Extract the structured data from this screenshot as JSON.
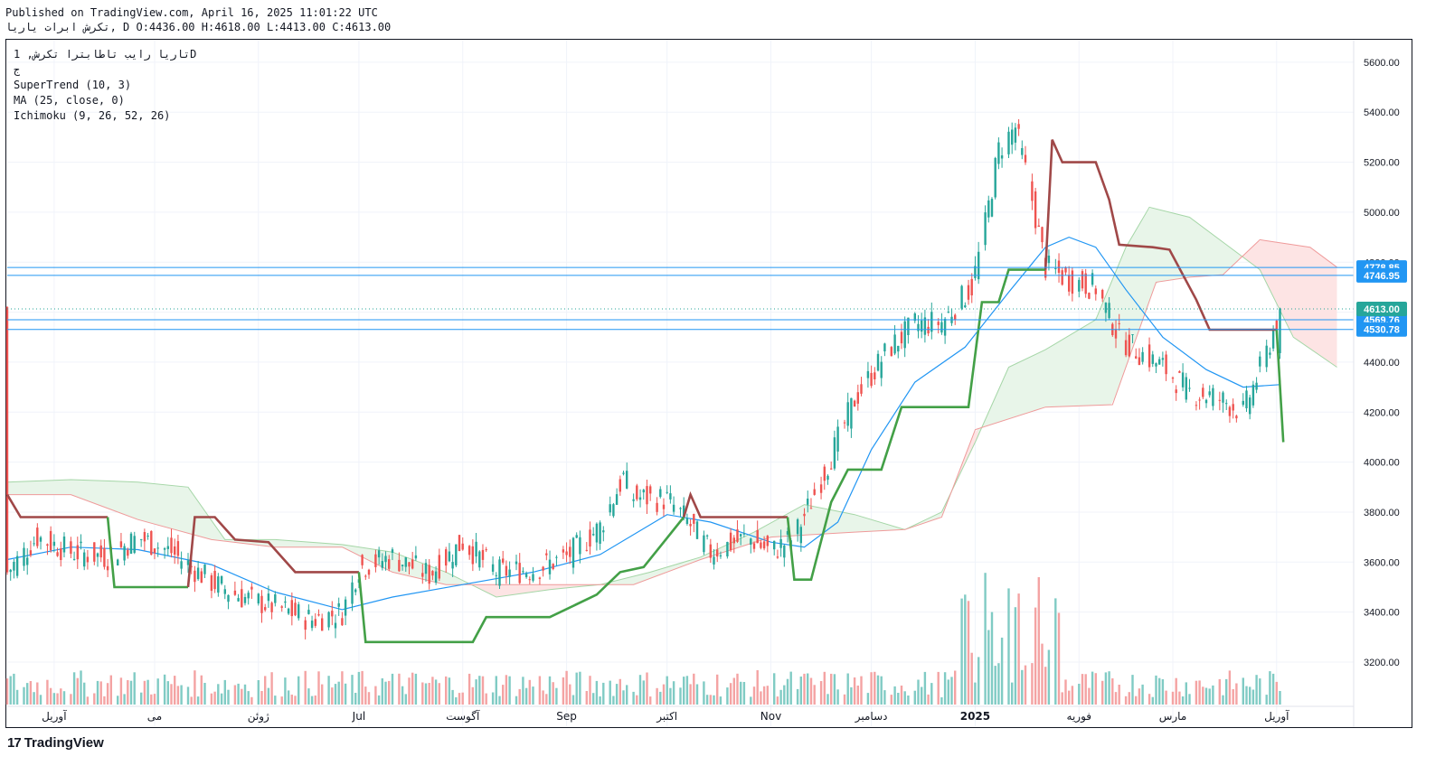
{
  "header": {
    "published": "Published on TradingView.com, April 16, 2025 11:01:22 UTC",
    "symbol_line": "تکرش ابرات یاریا, D O:4436.00 H:4618.00 L:4413.00 C:4613.00"
  },
  "legend": {
    "symbol": "تاریا رایب تاطابترا تکرش, 1D",
    "exchange": "ج",
    "supertrend": "SuperTrend (10, 3)",
    "ma": "MA (25, close, 0)",
    "ichimoku": "Ichimoku (9, 26, 52, 26)"
  },
  "footer": {
    "brand": "TradingView",
    "logo": "17"
  },
  "colors": {
    "up": "#26a69a",
    "down": "#ef5350",
    "ma": "#2196f3",
    "supertrend_up": "#43a047",
    "supertrend_down": "#a04848",
    "cloud_bull": "#e8f5e9",
    "cloud_bear": "#fde4e4",
    "price_label": "#2196f3",
    "last_price_label": "#26a69a"
  },
  "chart_data": {
    "type": "candlestick",
    "y_axis": {
      "min": 3030,
      "max": 5690,
      "ticks": [
        3200,
        3400,
        3600,
        3800,
        4000,
        4200,
        4400,
        4600,
        4800,
        5000,
        5200,
        5400,
        5600
      ]
    },
    "x_axis": {
      "range": [
        "2024-04-01",
        "2025-05-08"
      ],
      "labels": [
        {
          "text": "آوریل",
          "date": "2024-04-15"
        },
        {
          "text": "می",
          "date": "2024-05-15"
        },
        {
          "text": "ژوئن",
          "date": "2024-06-15"
        },
        {
          "text": "Jul",
          "date": "2024-07-15"
        },
        {
          "text": "آگوست",
          "date": "2024-08-15"
        },
        {
          "text": "Sep",
          "date": "2024-09-15"
        },
        {
          "text": "اکتبر",
          "date": "2024-10-15"
        },
        {
          "text": "Nov",
          "date": "2024-11-15"
        },
        {
          "text": "دسامبر",
          "date": "2024-12-15"
        },
        {
          "text": "2025",
          "date": "2025-01-15",
          "bold": true
        },
        {
          "text": "فوریه",
          "date": "2025-02-15"
        },
        {
          "text": "مارس",
          "date": "2025-03-15"
        },
        {
          "text": "آوریل",
          "date": "2025-04-15"
        }
      ]
    },
    "close_path": [
      [
        "2024-04-01",
        3560
      ],
      [
        "2024-04-10",
        3700
      ],
      [
        "2024-04-20",
        3640
      ],
      [
        "2024-05-01",
        3620
      ],
      [
        "2024-05-10",
        3700
      ],
      [
        "2024-05-20",
        3640
      ],
      [
        "2024-06-01",
        3520
      ],
      [
        "2024-06-10",
        3460
      ],
      [
        "2024-06-20",
        3420
      ],
      [
        "2024-07-01",
        3370
      ],
      [
        "2024-07-10",
        3400
      ],
      [
        "2024-07-15",
        3580
      ],
      [
        "2024-07-25",
        3620
      ],
      [
        "2024-08-05",
        3550
      ],
      [
        "2024-08-15",
        3680
      ],
      [
        "2024-08-25",
        3560
      ],
      [
        "2024-09-05",
        3570
      ],
      [
        "2024-09-15",
        3620
      ],
      [
        "2024-09-25",
        3740
      ],
      [
        "2024-10-02",
        3940
      ],
      [
        "2024-10-05",
        3860
      ],
      [
        "2024-10-15",
        3850
      ],
      [
        "2024-10-20",
        3780
      ],
      [
        "2024-10-28",
        3640
      ],
      [
        "2024-11-08",
        3700
      ],
      [
        "2024-11-15",
        3640
      ],
      [
        "2024-11-22",
        3700
      ],
      [
        "2024-12-01",
        3960
      ],
      [
        "2024-12-10",
        4250
      ],
      [
        "2024-12-20",
        4450
      ],
      [
        "2024-12-28",
        4550
      ],
      [
        "2025-01-05",
        4560
      ],
      [
        "2025-01-14",
        4700
      ],
      [
        "2025-01-18",
        4950
      ],
      [
        "2025-01-22",
        5250
      ],
      [
        "2025-01-27",
        5340
      ],
      [
        "2025-02-01",
        5050
      ],
      [
        "2025-02-05",
        4780
      ],
      [
        "2025-02-12",
        4730
      ],
      [
        "2025-02-20",
        4700
      ],
      [
        "2025-02-27",
        4500
      ],
      [
        "2025-03-05",
        4440
      ],
      [
        "2025-03-12",
        4380
      ],
      [
        "2025-03-20",
        4280
      ],
      [
        "2025-03-28",
        4260
      ],
      [
        "2025-04-05",
        4200
      ],
      [
        "2025-04-12",
        4436
      ],
      [
        "2025-04-16",
        4613
      ]
    ],
    "ma25": [
      [
        "2024-04-01",
        3610
      ],
      [
        "2024-04-20",
        3660
      ],
      [
        "2024-05-10",
        3650
      ],
      [
        "2024-06-01",
        3590
      ],
      [
        "2024-06-20",
        3480
      ],
      [
        "2024-07-10",
        3410
      ],
      [
        "2024-07-25",
        3460
      ],
      [
        "2024-08-15",
        3510
      ],
      [
        "2024-09-05",
        3560
      ],
      [
        "2024-09-25",
        3630
      ],
      [
        "2024-10-15",
        3790
      ],
      [
        "2024-10-28",
        3760
      ],
      [
        "2024-11-15",
        3680
      ],
      [
        "2024-11-25",
        3660
      ],
      [
        "2024-12-05",
        3760
      ],
      [
        "2024-12-15",
        4050
      ],
      [
        "2024-12-28",
        4320
      ],
      [
        "2025-01-12",
        4460
      ],
      [
        "2025-01-25",
        4680
      ],
      [
        "2025-02-05",
        4860
      ],
      [
        "2025-02-12",
        4900
      ],
      [
        "2025-02-20",
        4860
      ],
      [
        "2025-03-01",
        4690
      ],
      [
        "2025-03-12",
        4500
      ],
      [
        "2025-03-25",
        4370
      ],
      [
        "2025-04-05",
        4300
      ],
      [
        "2025-04-16",
        4310
      ]
    ],
    "supertrend": [
      {
        "trend": "down",
        "points": [
          [
            "2024-04-01",
            3870
          ],
          [
            "2024-04-05",
            3780
          ],
          [
            "2024-05-01",
            3780
          ]
        ]
      },
      {
        "trend": "up",
        "points": [
          [
            "2024-05-01",
            3780
          ],
          [
            "2024-05-03",
            3500
          ],
          [
            "2024-05-25",
            3500
          ]
        ]
      },
      {
        "trend": "down",
        "points": [
          [
            "2024-05-25",
            3500
          ],
          [
            "2024-05-27",
            3780
          ],
          [
            "2024-06-02",
            3780
          ],
          [
            "2024-06-08",
            3690
          ],
          [
            "2024-06-18",
            3680
          ],
          [
            "2024-06-26",
            3560
          ],
          [
            "2024-07-15",
            3560
          ]
        ]
      },
      {
        "trend": "up",
        "points": [
          [
            "2024-07-15",
            3560
          ],
          [
            "2024-07-17",
            3280
          ],
          [
            "2024-08-18",
            3280
          ],
          [
            "2024-08-22",
            3380
          ],
          [
            "2024-09-10",
            3380
          ],
          [
            "2024-09-24",
            3470
          ],
          [
            "2024-10-01",
            3560
          ],
          [
            "2024-10-08",
            3580
          ],
          [
            "2024-10-14",
            3680
          ],
          [
            "2024-10-20",
            3780
          ]
        ]
      },
      {
        "trend": "down",
        "points": [
          [
            "2024-10-20",
            3780
          ],
          [
            "2024-10-22",
            3870
          ],
          [
            "2024-10-25",
            3780
          ],
          [
            "2024-11-20",
            3780
          ]
        ]
      },
      {
        "trend": "up",
        "points": [
          [
            "2024-11-20",
            3780
          ],
          [
            "2024-11-22",
            3530
          ],
          [
            "2024-11-27",
            3530
          ],
          [
            "2024-12-03",
            3840
          ],
          [
            "2024-12-08",
            3970
          ],
          [
            "2024-12-18",
            3970
          ],
          [
            "2024-12-24",
            4220
          ],
          [
            "2025-01-13",
            4220
          ],
          [
            "2025-01-17",
            4640
          ],
          [
            "2025-01-22",
            4640
          ],
          [
            "2025-01-25",
            4770
          ],
          [
            "2025-02-05",
            4770
          ]
        ]
      },
      {
        "trend": "down",
        "points": [
          [
            "2025-02-05",
            4770
          ],
          [
            "2025-02-07",
            5290
          ],
          [
            "2025-02-10",
            5200
          ],
          [
            "2025-02-20",
            5200
          ],
          [
            "2025-02-24",
            5050
          ],
          [
            "2025-02-27",
            4870
          ],
          [
            "2025-03-09",
            4860
          ],
          [
            "2025-03-14",
            4850
          ],
          [
            "2025-03-22",
            4650
          ],
          [
            "2025-03-26",
            4530
          ],
          [
            "2025-04-15",
            4530
          ]
        ]
      },
      {
        "trend": "up",
        "points": [
          [
            "2025-04-15",
            4530
          ],
          [
            "2025-04-17",
            4080
          ]
        ]
      }
    ],
    "ichimoku_span_a": [
      [
        "2024-04-01",
        3920
      ],
      [
        "2024-04-20",
        3930
      ],
      [
        "2024-05-10",
        3920
      ],
      [
        "2024-05-25",
        3900
      ],
      [
        "2024-06-05",
        3690
      ],
      [
        "2024-06-20",
        3690
      ],
      [
        "2024-07-10",
        3670
      ],
      [
        "2024-07-25",
        3640
      ],
      [
        "2024-08-10",
        3560
      ],
      [
        "2024-08-25",
        3460
      ],
      [
        "2024-09-10",
        3490
      ],
      [
        "2024-09-25",
        3510
      ],
      [
        "2024-10-10",
        3560
      ],
      [
        "2024-10-25",
        3620
      ],
      [
        "2024-11-10",
        3720
      ],
      [
        "2024-11-25",
        3830
      ],
      [
        "2024-12-10",
        3790
      ],
      [
        "2024-12-25",
        3730
      ],
      [
        "2025-01-05",
        3800
      ],
      [
        "2025-01-15",
        4080
      ],
      [
        "2025-01-25",
        4380
      ],
      [
        "2025-02-05",
        4450
      ],
      [
        "2025-02-20",
        4570
      ],
      [
        "2025-03-01",
        4860
      ],
      [
        "2025-03-08",
        5020
      ],
      [
        "2025-03-20",
        4980
      ],
      [
        "2025-03-30",
        4880
      ],
      [
        "2025-04-10",
        4770
      ],
      [
        "2025-04-20",
        4500
      ],
      [
        "2025-05-03",
        4380
      ]
    ],
    "ichimoku_span_b": [
      [
        "2024-04-01",
        3870
      ],
      [
        "2024-04-20",
        3870
      ],
      [
        "2024-05-10",
        3770
      ],
      [
        "2024-06-01",
        3690
      ],
      [
        "2024-06-20",
        3660
      ],
      [
        "2024-07-10",
        3660
      ],
      [
        "2024-07-25",
        3560
      ],
      [
        "2024-08-10",
        3510
      ],
      [
        "2024-09-05",
        3510
      ],
      [
        "2024-10-05",
        3510
      ],
      [
        "2024-10-25",
        3610
      ],
      [
        "2024-11-15",
        3700
      ],
      [
        "2024-12-10",
        3720
      ],
      [
        "2024-12-25",
        3730
      ],
      [
        "2025-01-05",
        3780
      ],
      [
        "2025-01-15",
        4130
      ],
      [
        "2025-02-05",
        4220
      ],
      [
        "2025-02-25",
        4230
      ],
      [
        "2025-03-10",
        4720
      ],
      [
        "2025-03-20",
        4740
      ],
      [
        "2025-03-30",
        4750
      ],
      [
        "2025-04-10",
        4890
      ],
      [
        "2025-04-25",
        4860
      ],
      [
        "2025-05-03",
        4780
      ]
    ],
    "price_lines": [
      {
        "value": 4778.85,
        "label": "4778.85"
      },
      {
        "value": 4746.95,
        "label": "4746.95"
      },
      {
        "value": 4569.76,
        "label": "4569.76"
      },
      {
        "value": 4530.78,
        "label": "4530.78"
      }
    ],
    "last_price": {
      "value": 4613.0,
      "label": "4613.00"
    },
    "last_candle": {
      "date": "2025-04-16",
      "open": 4436.0,
      "high": 4618.0,
      "low": 4413.0,
      "close": 4613.0
    },
    "volume_note": "relative daily volume bars at bottom"
  }
}
